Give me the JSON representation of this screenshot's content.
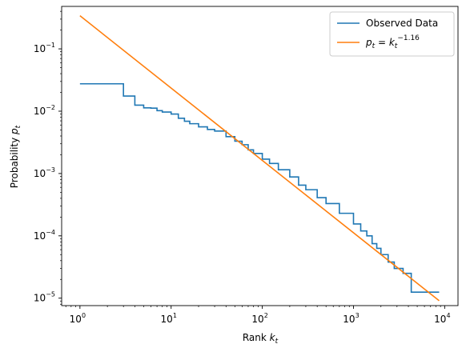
{
  "chart_data": {
    "type": "line",
    "x_scale": "log",
    "y_scale": "log",
    "xlim": [
      0.63,
      14000
    ],
    "ylim": [
      7.6e-06,
      0.48
    ],
    "x_ticks": [
      {
        "value": 1,
        "base": "10",
        "exp": "0"
      },
      {
        "value": 10,
        "base": "10",
        "exp": "1"
      },
      {
        "value": 100,
        "base": "10",
        "exp": "2"
      },
      {
        "value": 1000,
        "base": "10",
        "exp": "3"
      },
      {
        "value": 10000,
        "base": "10",
        "exp": "4"
      }
    ],
    "y_ticks": [
      {
        "value": 1e-05,
        "base": "10",
        "exp": "−5"
      },
      {
        "value": 0.0001,
        "base": "10",
        "exp": "−4"
      },
      {
        "value": 0.001,
        "base": "10",
        "exp": "−3"
      },
      {
        "value": 0.01,
        "base": "10",
        "exp": "−2"
      },
      {
        "value": 0.1,
        "base": "10",
        "exp": "−1"
      }
    ],
    "xlabel": {
      "text": "Rank ",
      "var": "k",
      "sub": "t"
    },
    "ylabel": {
      "text": "Probability ",
      "var": "p",
      "sub": "t"
    },
    "grid": false,
    "legend_position": "top-right",
    "series": [
      {
        "name": "Observed Data",
        "color": "#1f77b4",
        "style": "step",
        "x": [
          1,
          2,
          3,
          4,
          5,
          6,
          7,
          8,
          10,
          12,
          14,
          16,
          20,
          25,
          30,
          40,
          50,
          60,
          70,
          80,
          100,
          120,
          150,
          200,
          250,
          300,
          400,
          500,
          700,
          1000,
          1200,
          1400,
          1600,
          1800,
          2000,
          2400,
          2800,
          3500,
          4300,
          8700
        ],
        "y": [
          0.0275,
          0.0275,
          0.0175,
          0.0125,
          0.0113,
          0.0112,
          0.0102,
          0.0097,
          0.009,
          0.0077,
          0.0069,
          0.0063,
          0.0056,
          0.0051,
          0.0048,
          0.0039,
          0.0033,
          0.0029,
          0.0024,
          0.0021,
          0.0017,
          0.00145,
          0.00115,
          0.00088,
          0.00065,
          0.00055,
          0.00041,
          0.00033,
          0.00023,
          0.000155,
          0.00012,
          0.0001,
          7.5e-05,
          6.3e-05,
          5e-05,
          3.8e-05,
          3e-05,
          2.5e-05,
          1.25e-05,
          1.25e-05
        ]
      },
      {
        "name": "p_t = k_t^-1.16",
        "color": "#ff7f0e",
        "style": "line",
        "exponent": -1.16,
        "coefficient": 0.34,
        "x": [
          1,
          8700
        ],
        "y": [
          0.34,
          9.1e-06
        ]
      }
    ],
    "legend": [
      {
        "label": "Observed Data",
        "color": "#1f77b4"
      },
      {
        "label_var": "p",
        "label_sub": "t",
        "label_eq": " = ",
        "label_var2": "k",
        "label_sub2": "t",
        "label_exp": "−1.16",
        "color": "#ff7f0e"
      }
    ]
  }
}
